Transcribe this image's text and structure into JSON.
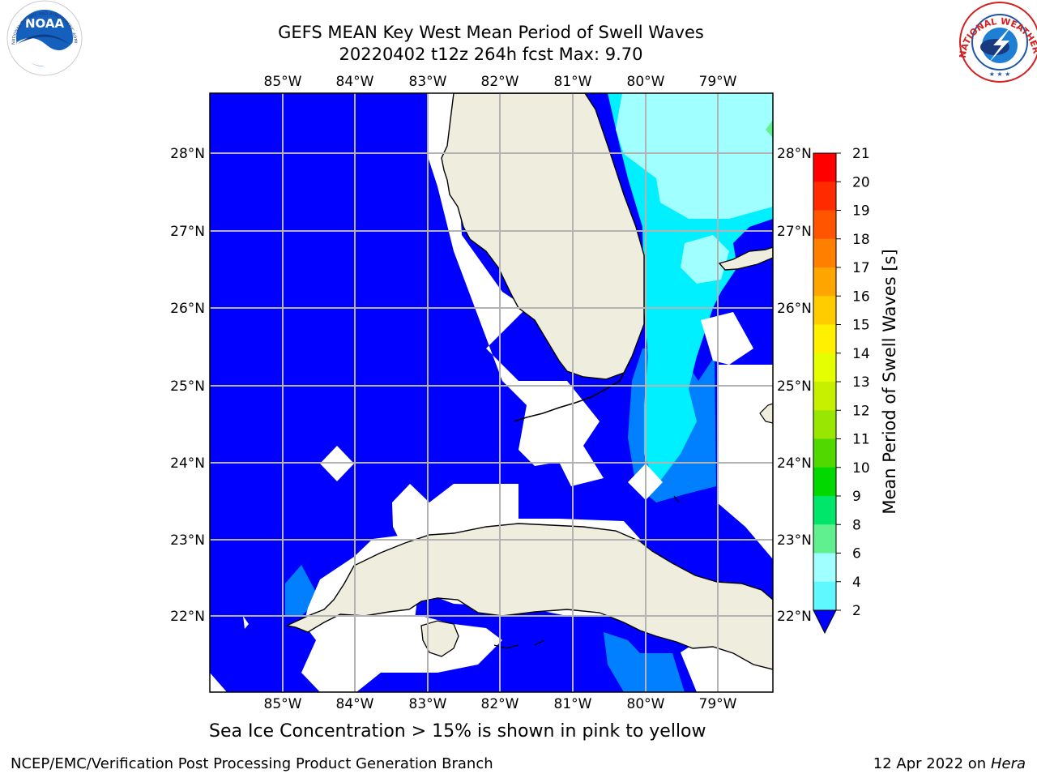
{
  "title": {
    "line1": "GEFS MEAN Key West Mean Period of Swell Waves",
    "line2": "20220402 t12z 264h fcst   Max: 9.70"
  },
  "map": {
    "lon_labels": [
      "85°W",
      "84°W",
      "83°W",
      "82°W",
      "81°W",
      "80°W",
      "79°W"
    ],
    "lat_labels": [
      "28°N",
      "27°N",
      "26°N",
      "25°N",
      "24°N",
      "23°N",
      "22°N"
    ],
    "colors": {
      "land": "#efeede",
      "grid": "#b3b3b3",
      "no_data": "#ffffff"
    }
  },
  "colorbar": {
    "label": "Mean Period of Swell Waves [s]",
    "ticks": [
      "21",
      "20",
      "19",
      "18",
      "17",
      "16",
      "15",
      "14",
      "13",
      "12",
      "11",
      "10",
      "9",
      "8",
      "6",
      "4",
      "2"
    ],
    "colors": [
      "#ff0000",
      "#ff2a00",
      "#ff5500",
      "#ff8000",
      "#ffa500",
      "#ffcc00",
      "#fff000",
      "#e6ff00",
      "#c6f000",
      "#99e600",
      "#50d800",
      "#00d800",
      "#00e66a",
      "#60f090",
      "#a0ffff",
      "#60f8ff",
      "#00f0ff",
      "#0080ff",
      "#0000ff"
    ]
  },
  "logos": {
    "noaa": "NOAA",
    "noaa_ring": "NATIONAL OCEANIC AND ATMOSPHERIC ADMINISTRATION · U.S. DEPARTMENT OF COMMERCE",
    "nws_ring": "NATIONAL WEATHER SERVICE"
  },
  "footer": {
    "note": "Sea Ice Concentration > 15% is shown in pink to yellow",
    "credit": "NCEP/EMC/Verification Post Processing Product Generation Branch",
    "date_prefix": "12 Apr 2022 on ",
    "date_host": "Hera"
  }
}
